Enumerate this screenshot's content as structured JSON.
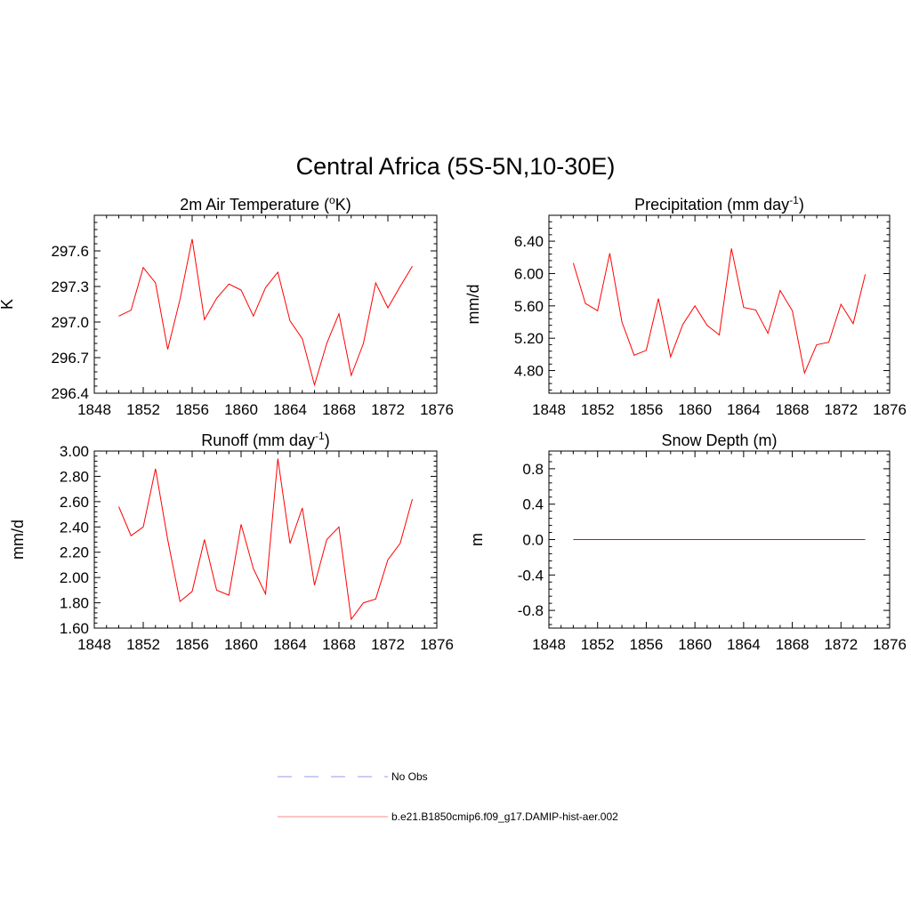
{
  "figure": {
    "title": "Central Africa (5S-5N,10-30E)"
  },
  "chart_data": [
    {
      "type": "line",
      "title": "2m Air Temperature (oK)",
      "title_parts": {
        "before": "2m Air Temperature (",
        "sup": "o",
        "after": "K)"
      },
      "xlabel": "",
      "ylabel": "K",
      "xlim": [
        1848,
        1876
      ],
      "ylim": [
        296.4,
        297.9
      ],
      "xticks": [
        1848,
        1852,
        1856,
        1860,
        1864,
        1868,
        1872,
        1876
      ],
      "xtick_labels": [
        "1848",
        "1852",
        "1856",
        "1860",
        "1864",
        "1868",
        "1872",
        "1876"
      ],
      "yticks": [
        296.4,
        296.7,
        297.0,
        297.3,
        297.6
      ],
      "ytick_labels": [
        "296.4",
        "296.7",
        "297.0",
        "297.3",
        "297.6"
      ],
      "grid": false,
      "series": [
        {
          "color": "#ff0000",
          "x": [
            1850,
            1851,
            1852,
            1853,
            1854,
            1855,
            1856,
            1857,
            1858,
            1859,
            1860,
            1861,
            1862,
            1863,
            1864,
            1865,
            1866,
            1867,
            1868,
            1869,
            1870,
            1871,
            1872,
            1873,
            1874
          ],
          "y": [
            297.05,
            297.1,
            297.46,
            297.33,
            296.77,
            297.19,
            297.7,
            297.02,
            297.2,
            297.32,
            297.27,
            297.05,
            297.29,
            297.42,
            297.01,
            296.86,
            296.47,
            296.82,
            297.07,
            296.55,
            296.82,
            297.33,
            297.12,
            297.3,
            297.47
          ]
        }
      ]
    },
    {
      "type": "line",
      "title": "Precipitation (mm day-1)",
      "title_parts": {
        "before": "Precipitation (mm day",
        "sup": "-1",
        "after": ")"
      },
      "xlabel": "",
      "ylabel": "mm/d",
      "xlim": [
        1848,
        1876
      ],
      "ylim": [
        4.52,
        6.72
      ],
      "xticks": [
        1848,
        1852,
        1856,
        1860,
        1864,
        1868,
        1872,
        1876
      ],
      "xtick_labels": [
        "1848",
        "1852",
        "1856",
        "1860",
        "1864",
        "1868",
        "1872",
        "1876"
      ],
      "yticks": [
        4.8,
        5.2,
        5.6,
        6.0,
        6.4
      ],
      "ytick_labels": [
        "4.80",
        "5.20",
        "5.60",
        "6.00",
        "6.40"
      ],
      "grid": false,
      "series": [
        {
          "color": "#ff0000",
          "x": [
            1850,
            1851,
            1852,
            1853,
            1854,
            1855,
            1856,
            1857,
            1858,
            1859,
            1860,
            1861,
            1862,
            1863,
            1864,
            1865,
            1866,
            1867,
            1868,
            1869,
            1870,
            1871,
            1872,
            1873,
            1874
          ],
          "y": [
            6.13,
            5.63,
            5.54,
            6.25,
            5.4,
            4.99,
            5.05,
            5.69,
            4.97,
            5.37,
            5.6,
            5.36,
            5.24,
            6.31,
            5.58,
            5.55,
            5.26,
            5.79,
            5.54,
            4.77,
            5.12,
            5.15,
            5.62,
            5.38,
            5.99
          ]
        }
      ]
    },
    {
      "type": "line",
      "title": "Runoff (mm day-1)",
      "title_parts": {
        "before": "Runoff (mm day",
        "sup": "-1",
        "after": ")"
      },
      "xlabel": "",
      "ylabel": "mm/d",
      "xlim": [
        1848,
        1876
      ],
      "ylim": [
        1.6,
        3.0
      ],
      "xticks": [
        1848,
        1852,
        1856,
        1860,
        1864,
        1868,
        1872,
        1876
      ],
      "xtick_labels": [
        "1848",
        "1852",
        "1856",
        "1860",
        "1864",
        "1868",
        "1872",
        "1876"
      ],
      "yticks": [
        1.6,
        1.8,
        2.0,
        2.2,
        2.4,
        2.6,
        2.8,
        3.0
      ],
      "ytick_labels": [
        "1.60",
        "1.80",
        "2.00",
        "2.20",
        "2.40",
        "2.60",
        "2.80",
        "3.00"
      ],
      "grid": false,
      "series": [
        {
          "color": "#ff0000",
          "x": [
            1850,
            1851,
            1852,
            1853,
            1854,
            1855,
            1856,
            1857,
            1858,
            1859,
            1860,
            1861,
            1862,
            1863,
            1864,
            1865,
            1866,
            1867,
            1868,
            1869,
            1870,
            1871,
            1872,
            1873,
            1874
          ],
          "y": [
            2.56,
            2.33,
            2.4,
            2.86,
            2.3,
            1.81,
            1.89,
            2.3,
            1.9,
            1.86,
            2.42,
            2.07,
            1.87,
            2.94,
            2.27,
            2.55,
            1.94,
            2.3,
            2.4,
            1.67,
            1.8,
            1.83,
            2.14,
            2.27,
            2.62
          ]
        }
      ]
    },
    {
      "type": "line",
      "title": "Snow Depth (m)",
      "title_parts": {
        "before": "Snow Depth (m)",
        "sup": "",
        "after": ""
      },
      "xlabel": "",
      "ylabel": "m",
      "xlim": [
        1848,
        1876
      ],
      "ylim": [
        -1.0,
        1.0
      ],
      "xticks": [
        1848,
        1852,
        1856,
        1860,
        1864,
        1868,
        1872,
        1876
      ],
      "xtick_labels": [
        "1848",
        "1852",
        "1856",
        "1860",
        "1864",
        "1868",
        "1872",
        "1876"
      ],
      "yticks": [
        -0.8,
        -0.4,
        0.0,
        0.4,
        0.8
      ],
      "ytick_labels": [
        "-0.8",
        "-0.4",
        "0.0",
        "0.4",
        "0.8"
      ],
      "grid": false,
      "series": [
        {
          "color": "#ff0000",
          "x": [
            1850,
            1851,
            1852,
            1853,
            1854,
            1855,
            1856,
            1857,
            1858,
            1859,
            1860,
            1861,
            1862,
            1863,
            1864,
            1865,
            1866,
            1867,
            1868,
            1869,
            1870,
            1871,
            1872,
            1873,
            1874
          ],
          "y": [
            0,
            0,
            0,
            0,
            0,
            0,
            0,
            0,
            0,
            0,
            0,
            0,
            0,
            0,
            0,
            0,
            0,
            0,
            0,
            0,
            0,
            0,
            0,
            0,
            0
          ]
        }
      ]
    }
  ],
  "legend": {
    "items": [
      {
        "label": "No Obs",
        "color": "#9999ee",
        "style": "dashed"
      },
      {
        "label": "b.e21.B1850cmip6.f09_g17.DAMIP-hist-aer.002",
        "color": "#ff8888",
        "style": "solid"
      }
    ]
  }
}
